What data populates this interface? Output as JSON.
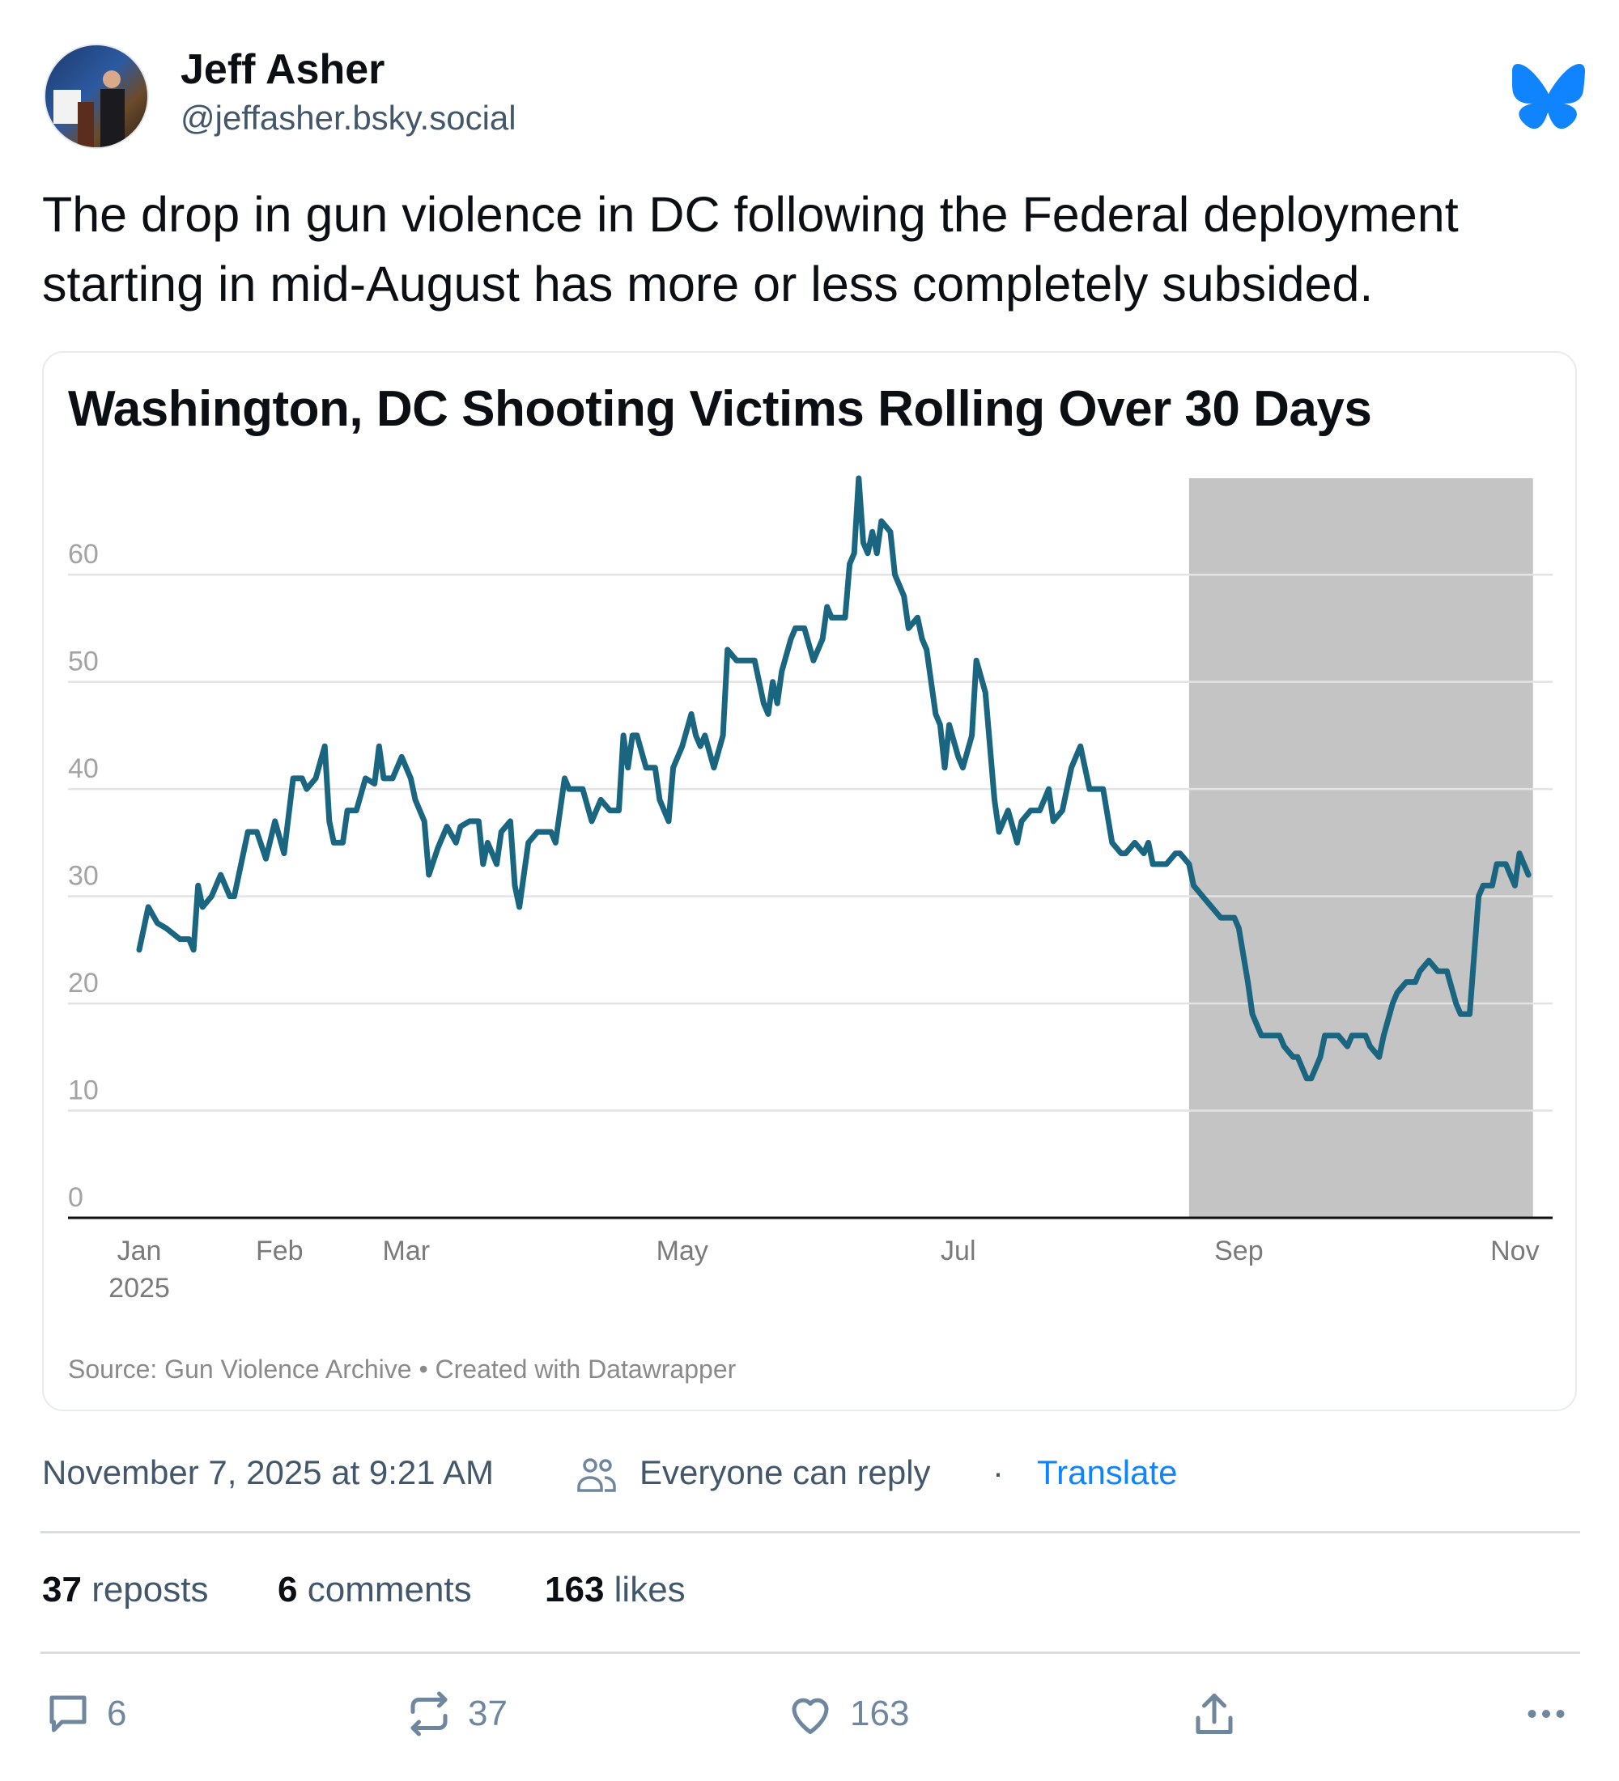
{
  "author": {
    "name": "Jeff Asher",
    "handle": "@jeffasher.bsky.social"
  },
  "brand": {
    "icon": "bluesky-butterfly-icon",
    "color": "#1083fe"
  },
  "post": {
    "text": "The drop in gun violence in DC following the Federal deployment starting in mid-August has more or less completely subsided."
  },
  "meta": {
    "timestamp": "November 7, 2025 at 9:21 AM",
    "reply_setting": "Everyone can reply",
    "separator": "·",
    "translate": "Translate"
  },
  "stats": {
    "reposts_count": "37",
    "reposts_label": "reposts",
    "comments_count": "6",
    "comments_label": "comments",
    "likes_count": "163",
    "likes_label": "likes"
  },
  "actions": {
    "reply": "6",
    "repost": "37",
    "like": "163"
  },
  "chart_data": {
    "type": "line",
    "title": "Washington, DC Shooting Victims Rolling Over 30 Days",
    "source": "Source: Gun Violence Archive • Created with Datawrapper",
    "xlabel": "",
    "ylabel": "",
    "ylim": [
      0,
      69
    ],
    "yticks": [
      0,
      10,
      20,
      30,
      40,
      50,
      60
    ],
    "xticks": [
      {
        "date": "2025-01-01",
        "label": "Jan",
        "sub": "2025"
      },
      {
        "date": "2025-02-01",
        "label": "Feb"
      },
      {
        "date": "2025-03-01",
        "label": "Mar"
      },
      {
        "date": "2025-05-01",
        "label": "May"
      },
      {
        "date": "2025-07-01",
        "label": "Jul"
      },
      {
        "date": "2025-09-01",
        "label": "Sep"
      },
      {
        "date": "2025-11-01",
        "label": "Nov"
      }
    ],
    "xlim": [
      "2025-01-01",
      "2025-11-06"
    ],
    "grid": true,
    "line_color": "#1a6580",
    "shaded_range": {
      "from": "2025-08-21",
      "to": "2025-11-05",
      "color": "#c4c4c4"
    },
    "points": [
      [
        "2025-01-01",
        25
      ],
      [
        "2025-01-03",
        29
      ],
      [
        "2025-01-05",
        27.5
      ],
      [
        "2025-01-07",
        27
      ],
      [
        "2025-01-10",
        26
      ],
      [
        "2025-01-12",
        26
      ],
      [
        "2025-01-13",
        25
      ],
      [
        "2025-01-14",
        31
      ],
      [
        "2025-01-15",
        29
      ],
      [
        "2025-01-17",
        30
      ],
      [
        "2025-01-19",
        32
      ],
      [
        "2025-01-21",
        30
      ],
      [
        "2025-01-22",
        30
      ],
      [
        "2025-01-25",
        36
      ],
      [
        "2025-01-27",
        36
      ],
      [
        "2025-01-29",
        33.5
      ],
      [
        "2025-01-31",
        37
      ],
      [
        "2025-02-02",
        34
      ],
      [
        "2025-02-04",
        41
      ],
      [
        "2025-02-06",
        41
      ],
      [
        "2025-02-07",
        40
      ],
      [
        "2025-02-09",
        41
      ],
      [
        "2025-02-10",
        42.5
      ],
      [
        "2025-02-11",
        44
      ],
      [
        "2025-02-12",
        37
      ],
      [
        "2025-02-13",
        35
      ],
      [
        "2025-02-15",
        35
      ],
      [
        "2025-02-16",
        38
      ],
      [
        "2025-02-18",
        38
      ],
      [
        "2025-02-20",
        41
      ],
      [
        "2025-02-22",
        40.5
      ],
      [
        "2025-02-23",
        44
      ],
      [
        "2025-02-24",
        41
      ],
      [
        "2025-02-26",
        41
      ],
      [
        "2025-02-28",
        43
      ],
      [
        "2025-03-02",
        41
      ],
      [
        "2025-03-03",
        39
      ],
      [
        "2025-03-05",
        37
      ],
      [
        "2025-03-06",
        32
      ],
      [
        "2025-03-08",
        34.5
      ],
      [
        "2025-03-10",
        36.5
      ],
      [
        "2025-03-12",
        35
      ],
      [
        "2025-03-13",
        36.5
      ],
      [
        "2025-03-15",
        37
      ],
      [
        "2025-03-17",
        37
      ],
      [
        "2025-03-18",
        33
      ],
      [
        "2025-03-19",
        35
      ],
      [
        "2025-03-21",
        33
      ],
      [
        "2025-03-22",
        36
      ],
      [
        "2025-03-24",
        37
      ],
      [
        "2025-03-25",
        31
      ],
      [
        "2025-03-26",
        29
      ],
      [
        "2025-03-28",
        35
      ],
      [
        "2025-03-30",
        36
      ],
      [
        "2025-04-02",
        36
      ],
      [
        "2025-04-03",
        35
      ],
      [
        "2025-04-05",
        41
      ],
      [
        "2025-04-06",
        40
      ],
      [
        "2025-04-09",
        40
      ],
      [
        "2025-04-11",
        37
      ],
      [
        "2025-04-13",
        39
      ],
      [
        "2025-04-15",
        38
      ],
      [
        "2025-04-17",
        38
      ],
      [
        "2025-04-18",
        45
      ],
      [
        "2025-04-19",
        42
      ],
      [
        "2025-04-20",
        45
      ],
      [
        "2025-04-21",
        45
      ],
      [
        "2025-04-23",
        42
      ],
      [
        "2025-04-25",
        42
      ],
      [
        "2025-04-26",
        39
      ],
      [
        "2025-04-28",
        37
      ],
      [
        "2025-04-29",
        42
      ],
      [
        "2025-05-01",
        44
      ],
      [
        "2025-05-03",
        47
      ],
      [
        "2025-05-04",
        45
      ],
      [
        "2025-05-05",
        44
      ],
      [
        "2025-05-06",
        45
      ],
      [
        "2025-05-08",
        42
      ],
      [
        "2025-05-10",
        45
      ],
      [
        "2025-05-11",
        53
      ],
      [
        "2025-05-13",
        52
      ],
      [
        "2025-05-17",
        52
      ],
      [
        "2025-05-19",
        48
      ],
      [
        "2025-05-20",
        47
      ],
      [
        "2025-05-21",
        50
      ],
      [
        "2025-05-22",
        48
      ],
      [
        "2025-05-23",
        51
      ],
      [
        "2025-05-25",
        54
      ],
      [
        "2025-05-26",
        55
      ],
      [
        "2025-05-28",
        55
      ],
      [
        "2025-05-30",
        52
      ],
      [
        "2025-06-01",
        54
      ],
      [
        "2025-06-02",
        57
      ],
      [
        "2025-06-03",
        56
      ],
      [
        "2025-06-06",
        56
      ],
      [
        "2025-06-07",
        61
      ],
      [
        "2025-06-08",
        62
      ],
      [
        "2025-06-09",
        69
      ],
      [
        "2025-06-10",
        63
      ],
      [
        "2025-06-11",
        62
      ],
      [
        "2025-06-12",
        64
      ],
      [
        "2025-06-13",
        62
      ],
      [
        "2025-06-14",
        65
      ],
      [
        "2025-06-16",
        64
      ],
      [
        "2025-06-17",
        60
      ],
      [
        "2025-06-19",
        58
      ],
      [
        "2025-06-20",
        55
      ],
      [
        "2025-06-22",
        56
      ],
      [
        "2025-06-23",
        54
      ],
      [
        "2025-06-24",
        53
      ],
      [
        "2025-06-26",
        47
      ],
      [
        "2025-06-27",
        46
      ],
      [
        "2025-06-28",
        42
      ],
      [
        "2025-06-29",
        46
      ],
      [
        "2025-07-01",
        43
      ],
      [
        "2025-07-02",
        42
      ],
      [
        "2025-07-04",
        45
      ],
      [
        "2025-07-05",
        52
      ],
      [
        "2025-07-07",
        49
      ],
      [
        "2025-07-09",
        39
      ],
      [
        "2025-07-10",
        36
      ],
      [
        "2025-07-12",
        38
      ],
      [
        "2025-07-14",
        35
      ],
      [
        "2025-07-15",
        37
      ],
      [
        "2025-07-17",
        38
      ],
      [
        "2025-07-19",
        38
      ],
      [
        "2025-07-21",
        40
      ],
      [
        "2025-07-22",
        37
      ],
      [
        "2025-07-24",
        38
      ],
      [
        "2025-07-26",
        42
      ],
      [
        "2025-07-27",
        43
      ],
      [
        "2025-07-28",
        44
      ],
      [
        "2025-07-30",
        40
      ],
      [
        "2025-08-01",
        40
      ],
      [
        "2025-08-02",
        40
      ],
      [
        "2025-08-04",
        35
      ],
      [
        "2025-08-06",
        34
      ],
      [
        "2025-08-07",
        34
      ],
      [
        "2025-08-09",
        35
      ],
      [
        "2025-08-11",
        34
      ],
      [
        "2025-08-12",
        35
      ],
      [
        "2025-08-13",
        33
      ],
      [
        "2025-08-15",
        33
      ],
      [
        "2025-08-16",
        33
      ],
      [
        "2025-08-18",
        34
      ],
      [
        "2025-08-19",
        34
      ],
      [
        "2025-08-21",
        33
      ],
      [
        "2025-08-22",
        31
      ],
      [
        "2025-08-24",
        30
      ],
      [
        "2025-08-26",
        29
      ],
      [
        "2025-08-28",
        28
      ],
      [
        "2025-08-31",
        28
      ],
      [
        "2025-09-01",
        27
      ],
      [
        "2025-09-03",
        22
      ],
      [
        "2025-09-04",
        19
      ],
      [
        "2025-09-05",
        18
      ],
      [
        "2025-09-06",
        17
      ],
      [
        "2025-09-10",
        17
      ],
      [
        "2025-09-11",
        16
      ],
      [
        "2025-09-13",
        15
      ],
      [
        "2025-09-14",
        15
      ],
      [
        "2025-09-16",
        13
      ],
      [
        "2025-09-17",
        13
      ],
      [
        "2025-09-19",
        15
      ],
      [
        "2025-09-20",
        17
      ],
      [
        "2025-09-23",
        17
      ],
      [
        "2025-09-25",
        16
      ],
      [
        "2025-09-26",
        17
      ],
      [
        "2025-09-29",
        17
      ],
      [
        "2025-09-30",
        16
      ],
      [
        "2025-10-02",
        15
      ],
      [
        "2025-10-03",
        17
      ],
      [
        "2025-10-05",
        20
      ],
      [
        "2025-10-06",
        21
      ],
      [
        "2025-10-08",
        22
      ],
      [
        "2025-10-10",
        22
      ],
      [
        "2025-10-11",
        23
      ],
      [
        "2025-10-13",
        24
      ],
      [
        "2025-10-15",
        23
      ],
      [
        "2025-10-17",
        23
      ],
      [
        "2025-10-19",
        20
      ],
      [
        "2025-10-20",
        19
      ],
      [
        "2025-10-22",
        19
      ],
      [
        "2025-10-24",
        30
      ],
      [
        "2025-10-25",
        31
      ],
      [
        "2025-10-27",
        31
      ],
      [
        "2025-10-28",
        33
      ],
      [
        "2025-10-30",
        33
      ],
      [
        "2025-11-01",
        31
      ],
      [
        "2025-11-02",
        34
      ],
      [
        "2025-11-04",
        32
      ]
    ]
  }
}
